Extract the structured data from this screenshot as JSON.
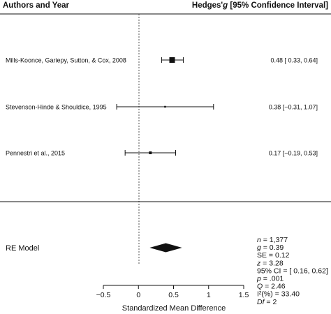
{
  "chart_data": {
    "type": "forest",
    "header": {
      "left": "Authors and Year",
      "right_prefix": "Hedges'",
      "right_italic": "g",
      "right_suffix": " [95% Confidence Interval]"
    },
    "studies": [
      {
        "label": "Mills-Koonce, Gariepy, Sutton, & Cox, 2008",
        "estimate": 0.48,
        "ci_low": 0.33,
        "ci_high": 0.64,
        "ci_text": "0.48 [ 0.33,  0.64]",
        "weight_marker": "large"
      },
      {
        "label": "Stevenson-Hinde & Shouldice, 1995",
        "estimate": 0.38,
        "ci_low": -0.31,
        "ci_high": 1.07,
        "ci_text": "0.38 [−0.31,  1.07]",
        "weight_marker": "small"
      },
      {
        "label": "Pennestri et al., 2015",
        "estimate": 0.17,
        "ci_low": -0.19,
        "ci_high": 0.53,
        "ci_text": "0.17 [−0.19,  0.53]",
        "weight_marker": "medium"
      }
    ],
    "summary": {
      "label": "RE Model",
      "estimate": 0.39,
      "ci_low": 0.16,
      "ci_high": 0.62
    },
    "stats": [
      {
        "sym": "n",
        "rest": " = 1,377",
        "italic": true
      },
      {
        "sym": "g",
        "rest": " = 0.39",
        "italic": true
      },
      {
        "sym": "SE",
        "rest": " = 0.12",
        "italic": false
      },
      {
        "sym": "z",
        "rest": " = 3.28",
        "italic": true
      },
      {
        "sym": "95% CI",
        "rest": " = [ 0.16, 0.62]",
        "italic": false
      },
      {
        "sym": "p",
        "rest": " = .001",
        "italic": true
      },
      {
        "sym": "Q",
        "rest": " = 2.46",
        "italic": true
      },
      {
        "sym": "I²(%)",
        "rest": " = 33.40",
        "italic": false
      },
      {
        "sym": "Df",
        "rest": " = 2",
        "italic": true
      }
    ],
    "xlabel": "Standardized Mean Difference",
    "xlim": [
      -0.5,
      1.5
    ],
    "x_ticks": [
      -0.5,
      0,
      0.5,
      1,
      1.5
    ],
    "x_tick_labels": [
      "−0.5",
      "0",
      "0.5",
      "1",
      "1.5"
    ],
    "reference_line": 0,
    "colors": {
      "ink": "#111111",
      "reference_line": "#555555"
    }
  }
}
